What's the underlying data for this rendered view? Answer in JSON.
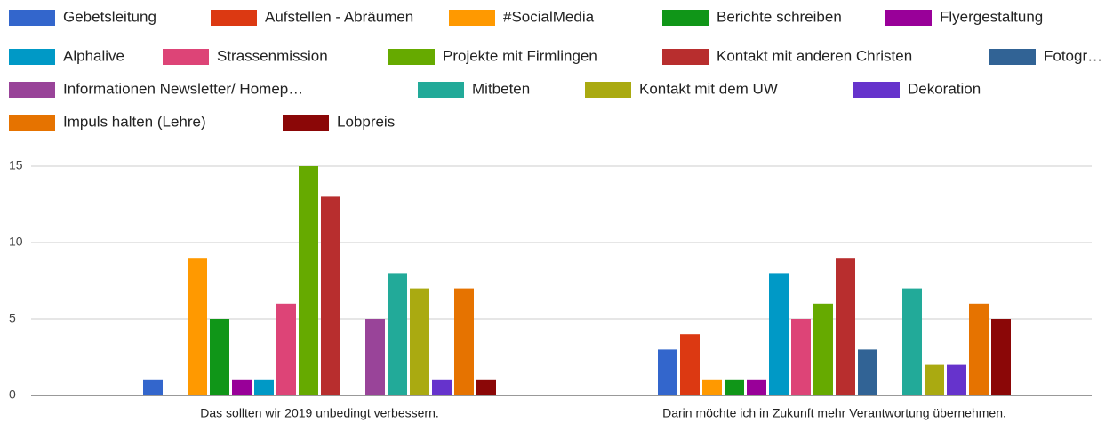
{
  "chart_data": {
    "type": "bar",
    "categories": [
      "Das sollten wir 2019 unbedingt verbessern.",
      "Darin möchte ich in Zukunft mehr Verantwortung übernehmen."
    ],
    "series": [
      {
        "name": "Gebetsleitung",
        "color": "#3366cc",
        "values": [
          1,
          3
        ]
      },
      {
        "name": "Aufstellen - Abräumen",
        "color": "#dc3912",
        "values": [
          0,
          4
        ]
      },
      {
        "name": "#SocialMedia",
        "color": "#ff9900",
        "values": [
          9,
          1
        ]
      },
      {
        "name": "Berichte schreiben",
        "color": "#109618",
        "values": [
          5,
          1
        ]
      },
      {
        "name": "Flyergestaltung",
        "color": "#990099",
        "values": [
          1,
          1
        ]
      },
      {
        "name": "Alphalive",
        "color": "#0099c6",
        "values": [
          1,
          8
        ]
      },
      {
        "name": "Strassenmission",
        "color": "#dd4477",
        "values": [
          6,
          5
        ]
      },
      {
        "name": "Projekte mit Firmlingen",
        "color": "#66aa00",
        "values": [
          15,
          6
        ]
      },
      {
        "name": "Kontakt mit anderen Christen",
        "color": "#b82e2e",
        "values": [
          13,
          9
        ]
      },
      {
        "name": "Fotogr…",
        "color": "#316395",
        "values": [
          0,
          3
        ]
      },
      {
        "name": "Informationen Newsletter/ Homep…",
        "color": "#994499",
        "values": [
          5,
          0
        ]
      },
      {
        "name": "Mitbeten",
        "color": "#22aa99",
        "values": [
          8,
          7
        ]
      },
      {
        "name": "Kontakt mit dem UW",
        "color": "#aaaa11",
        "values": [
          7,
          2
        ]
      },
      {
        "name": "Dekoration",
        "color": "#6633cc",
        "values": [
          1,
          2
        ]
      },
      {
        "name": "Impuls halten (Lehre)",
        "color": "#e67300",
        "values": [
          7,
          6
        ]
      },
      {
        "name": "Lobpreis",
        "color": "#8b0707",
        "values": [
          1,
          5
        ]
      }
    ],
    "ylim": [
      0,
      15
    ],
    "yticks": [
      0,
      5,
      10,
      15
    ],
    "grid": true
  }
}
